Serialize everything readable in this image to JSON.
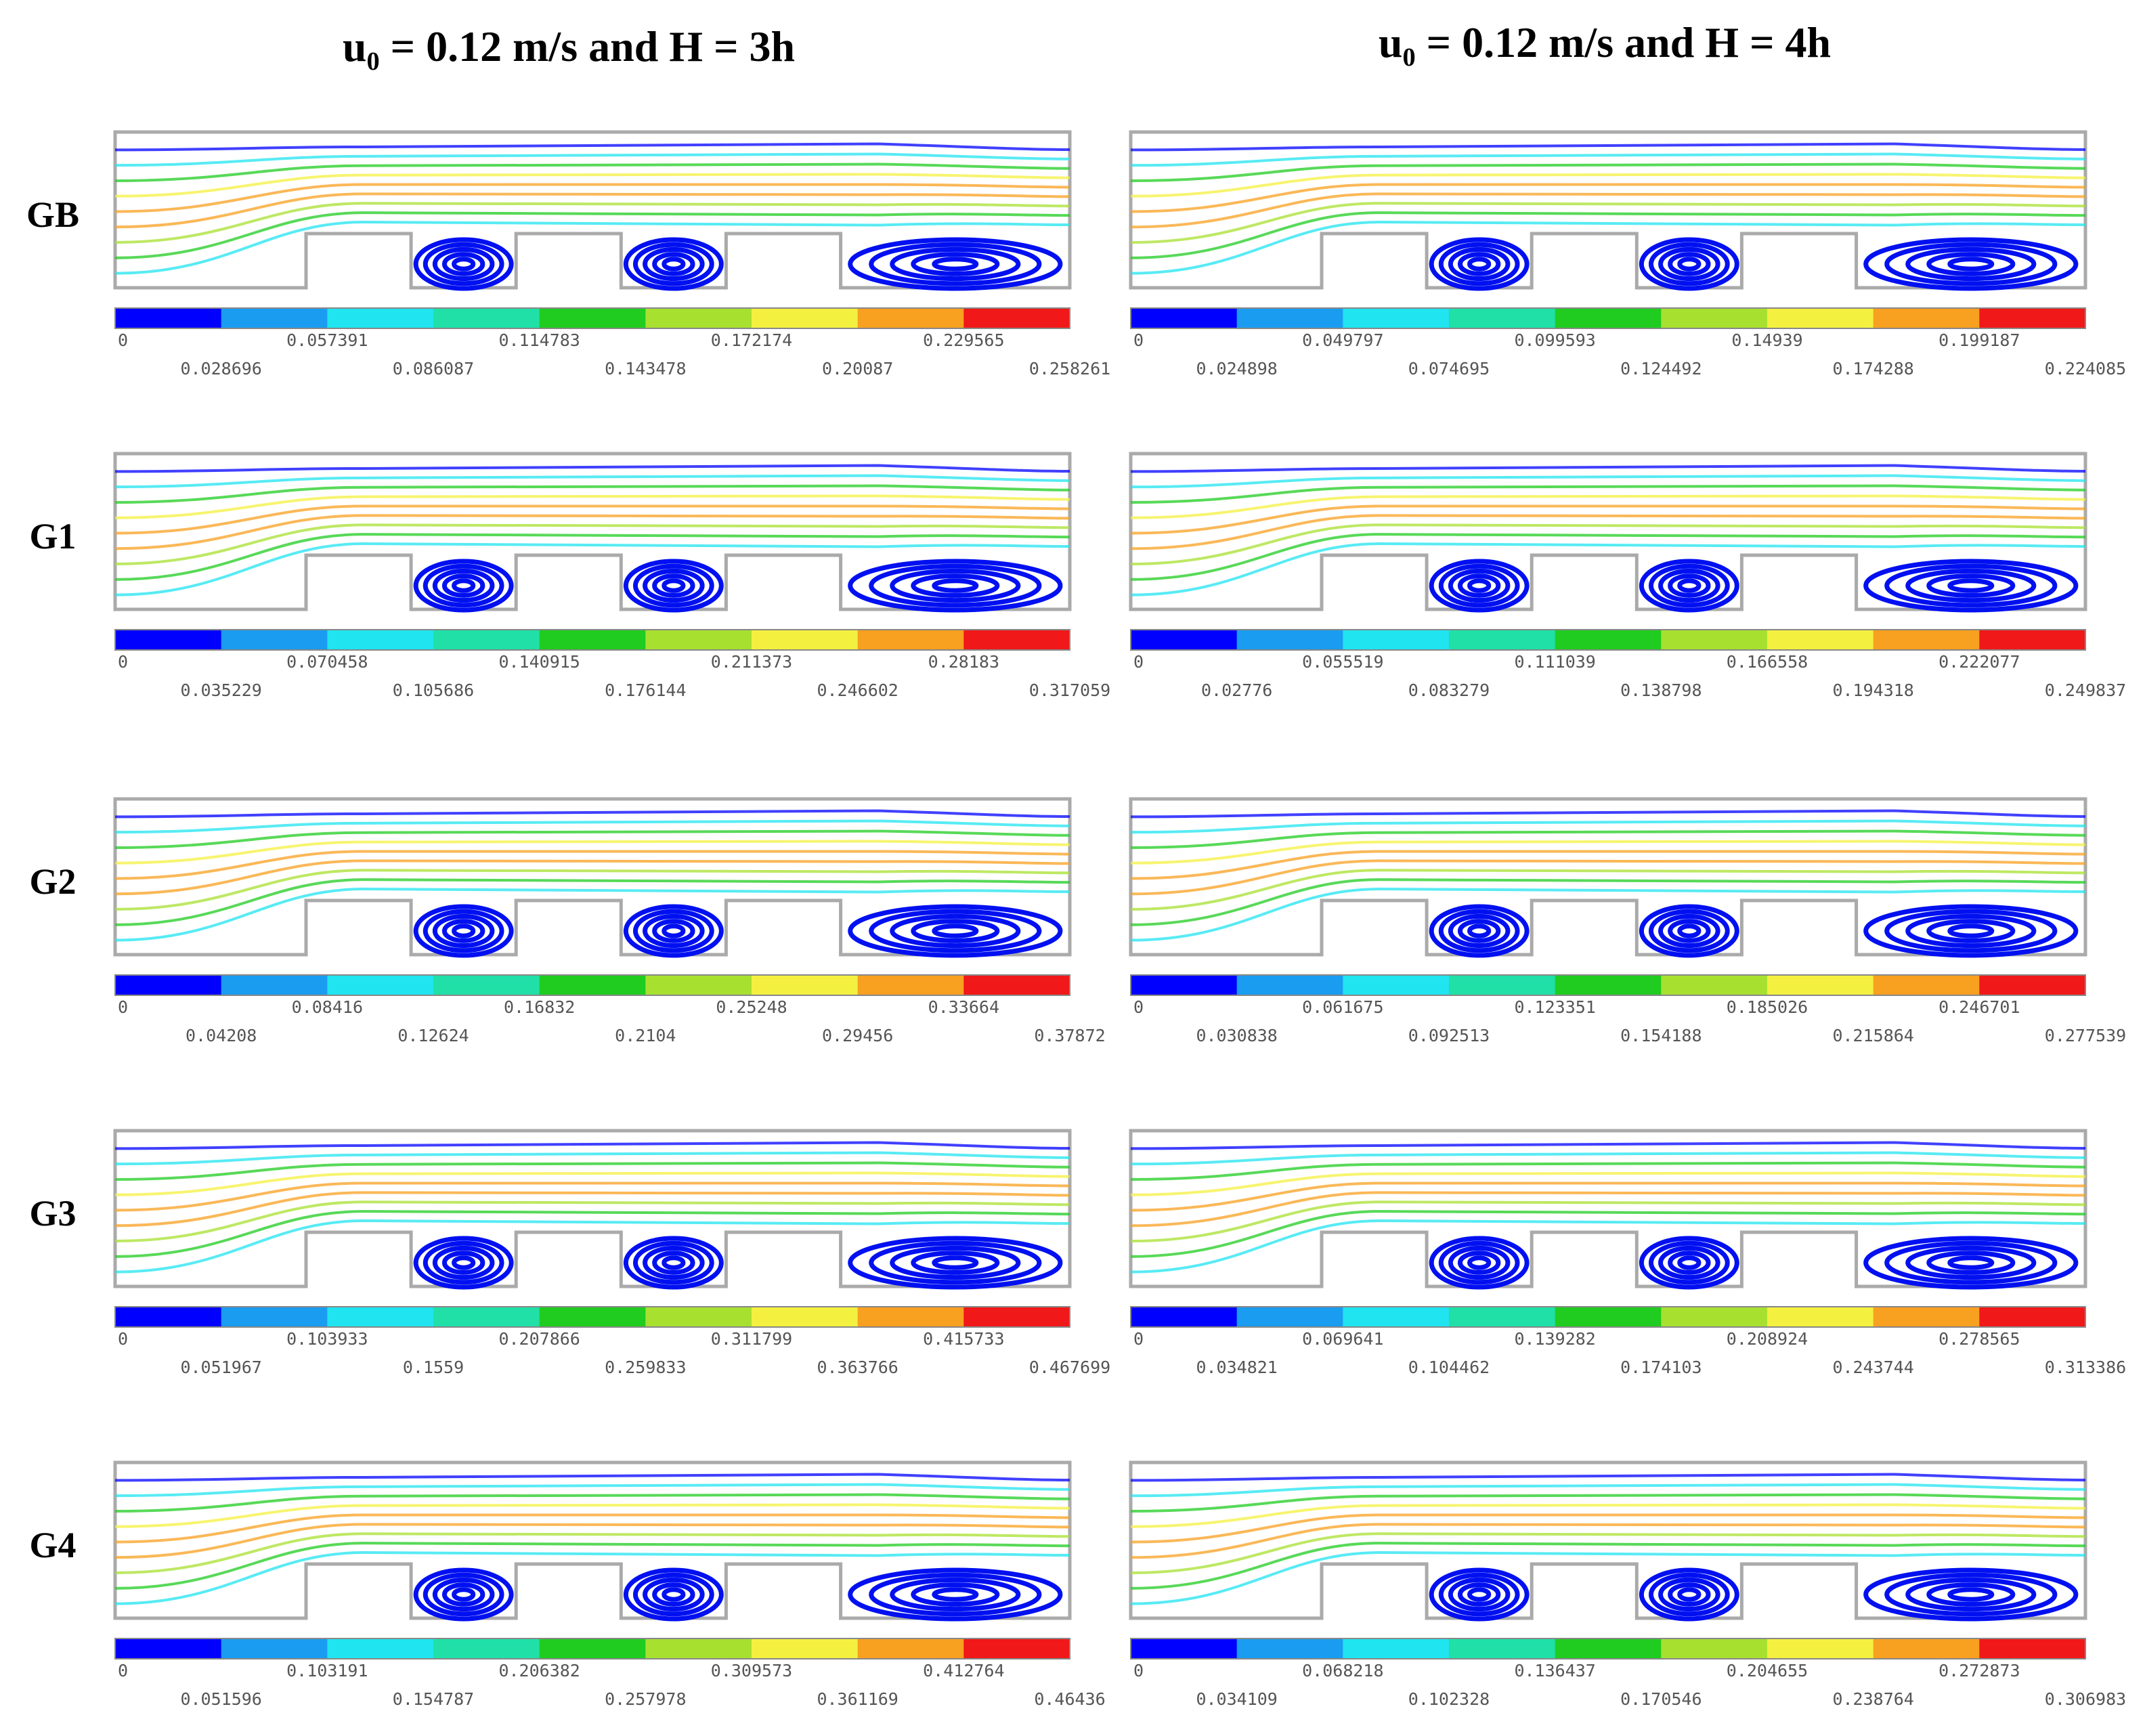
{
  "columns": [
    {
      "title": "u₀ = 0.12 m/s and H = 3h"
    },
    {
      "title": "u₀ = 0.12 m/s and H = 4h"
    }
  ],
  "rows": [
    {
      "label": "GB",
      "panels": [
        {
          "colorbar": [
            "0",
            "0.028696",
            "0.057391",
            "0.086087",
            "0.114783",
            "0.143478",
            "0.172174",
            "0.20087",
            "0.229565",
            "0.258261"
          ]
        },
        {
          "colorbar": [
            "0",
            "0.024898",
            "0.049797",
            "0.074695",
            "0.099593",
            "0.124492",
            "0.14939",
            "0.174288",
            "0.199187",
            "0.224085"
          ]
        }
      ]
    },
    {
      "label": "G1",
      "panels": [
        {
          "colorbar": [
            "0",
            "0.035229",
            "0.070458",
            "0.105686",
            "0.140915",
            "0.176144",
            "0.211373",
            "0.246602",
            "0.28183",
            "0.317059"
          ]
        },
        {
          "colorbar": [
            "0",
            "0.02776",
            "0.055519",
            "0.083279",
            "0.111039",
            "0.138798",
            "0.166558",
            "0.194318",
            "0.222077",
            "0.249837"
          ]
        }
      ]
    },
    {
      "label": "G2",
      "panels": [
        {
          "colorbar": [
            "0",
            "0.04208",
            "0.08416",
            "0.12624",
            "0.16832",
            "0.2104",
            "0.25248",
            "0.29456",
            "0.33664",
            "0.37872"
          ]
        },
        {
          "colorbar": [
            "0",
            "0.030838",
            "0.061675",
            "0.092513",
            "0.123351",
            "0.154188",
            "0.185026",
            "0.215864",
            "0.246701",
            "0.277539"
          ]
        }
      ]
    },
    {
      "label": "G3",
      "panels": [
        {
          "colorbar": [
            "0",
            "0.051967",
            "0.103933",
            "0.1559",
            "0.207866",
            "0.259833",
            "0.311799",
            "0.363766",
            "0.415733",
            "0.467699"
          ]
        },
        {
          "colorbar": [
            "0",
            "0.034821",
            "0.069641",
            "0.104462",
            "0.139282",
            "0.174103",
            "0.208924",
            "0.243744",
            "0.278565",
            "0.313386"
          ]
        }
      ]
    },
    {
      "label": "G4",
      "panels": [
        {
          "colorbar": [
            "0",
            "0.051596",
            "0.103191",
            "0.154787",
            "0.206382",
            "0.257978",
            "0.309573",
            "0.361169",
            "0.412764",
            "0.46436"
          ]
        },
        {
          "colorbar": [
            "0",
            "0.034109",
            "0.068218",
            "0.102328",
            "0.136437",
            "0.170546",
            "0.204655",
            "0.238764",
            "0.272873",
            "0.306983"
          ]
        }
      ]
    }
  ]
}
